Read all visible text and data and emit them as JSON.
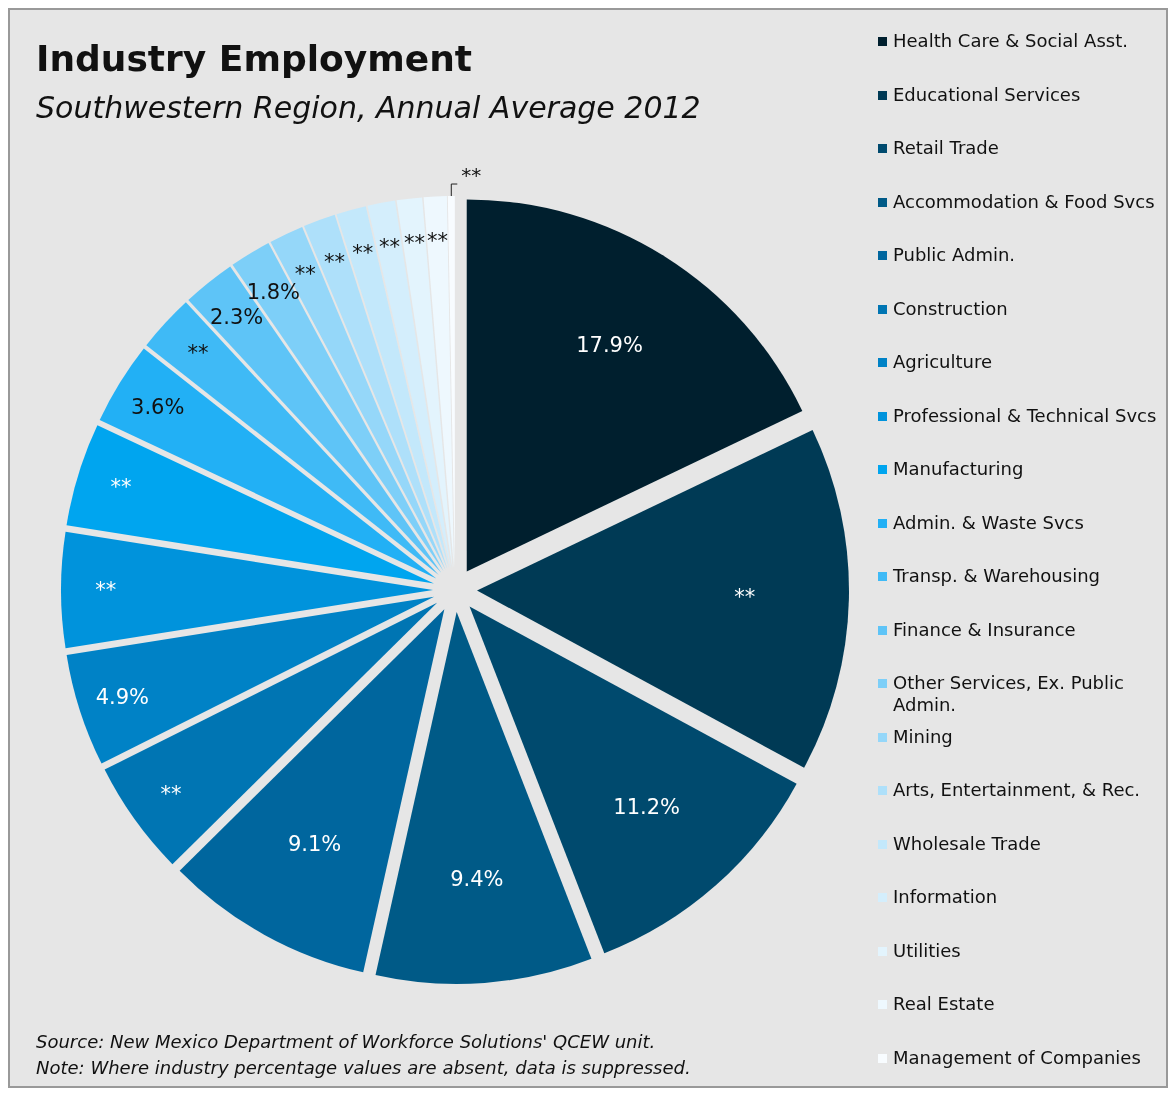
{
  "chart_data": {
    "type": "pie",
    "title": "Industry Employment",
    "subtitle": "Southwestern Region, Annual Average 2012",
    "categories": [
      "Health Care & Social Asst.",
      "Educational Services",
      "Retail Trade",
      "Accommodation & Food Svcs",
      "Public Admin.",
      "Construction",
      "Agriculture",
      "Professional & Technical Svcs",
      "Manufacturing",
      "Admin. & Waste Svcs",
      "Transp. & Warehousing",
      "Finance & Insurance",
      "Other Services, Ex. Public Admin.",
      "Mining",
      "Arts, Entertainment, & Rec.",
      "Wholesale Trade",
      "Information",
      "Utilities",
      "Real Estate",
      "Management of Companies"
    ],
    "values": [
      17.9,
      15,
      11.2,
      9.4,
      9.1,
      5,
      4.9,
      5,
      4.5,
      3.6,
      2.5,
      2.3,
      1.8,
      1.5,
      1.4,
      1.3,
      1.2,
      1.1,
      1.0,
      0.3
    ],
    "value_labels": [
      "17.9%",
      "**",
      "11.2%",
      "9.4%",
      "9.1%",
      "**",
      "4.9%",
      "**",
      "**",
      "3.6%",
      "**",
      "2.3%",
      "1.8%",
      "**",
      "**",
      "**",
      "**",
      "**",
      "**",
      "**"
    ],
    "colors": [
      "#001f2e",
      "#003a55",
      "#004a6e",
      "#005a87",
      "#00669e",
      "#0075b3",
      "#0082c6",
      "#0093dc",
      "#00a5ef",
      "#22b0f5",
      "#3fbaf6",
      "#5ec4f7",
      "#7dcff8",
      "#95d7f9",
      "#aee0fa",
      "#c3e8fb",
      "#d4eefc",
      "#e3f4fd",
      "#eef8fe",
      "#f8fcff"
    ],
    "legend": "right",
    "annotations": [
      "Source: New Mexico Department of Workforce Solutions' QCEW unit.",
      "Note: Where industry percentage values are absent, data is suppressed."
    ]
  }
}
